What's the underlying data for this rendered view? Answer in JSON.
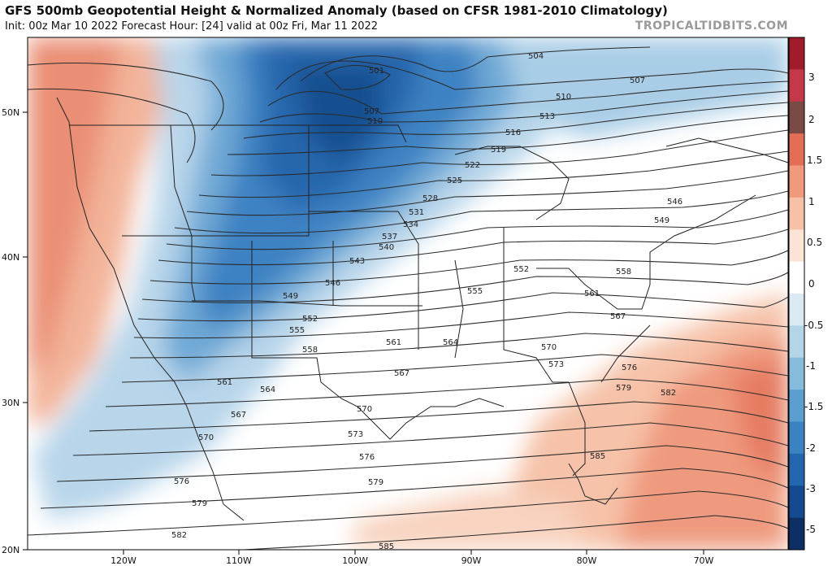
{
  "header": {
    "title": "GFS 500mb Geopotential Height & Normalized Anomaly (based on CFSR 1981-2010 Climatology)",
    "subtitle": "Init: 00z Mar 10 2022   Forecast Hour: [24]   valid at 00z Fri, Mar 11 2022",
    "credit": "TROPICALTIDBITS.COM"
  },
  "axes": {
    "lat_labels": [
      "50N",
      "40N",
      "30N",
      "20N"
    ],
    "lon_labels": [
      "120W",
      "110W",
      "100W",
      "90W",
      "80W",
      "70W"
    ]
  },
  "colorbar": {
    "labels": [
      "3",
      "2",
      "1.5",
      "1",
      "0.5",
      "0",
      "-0.5",
      "-1",
      "-1.5",
      "-2",
      "-3",
      "-5"
    ],
    "colors": [
      "#a01c2c",
      "#c4394a",
      "#7a4a44",
      "#e26e55",
      "#f0997c",
      "#f7c1a8",
      "#fbe3d6",
      "#ffffff",
      "#dbe9f3",
      "#b4d4e8",
      "#86bbdc",
      "#5a9fcf",
      "#3a82c0",
      "#2366ad",
      "#164a8e",
      "#0d2f64"
    ]
  },
  "contours": {
    "labels": [
      "501",
      "504",
      "507",
      "507",
      "510",
      "510",
      "513",
      "516",
      "519",
      "522",
      "525",
      "528",
      "531",
      "534",
      "537",
      "540",
      "543",
      "546",
      "546",
      "549",
      "549",
      "552",
      "552",
      "555",
      "555",
      "558",
      "558",
      "561",
      "561",
      "561",
      "564",
      "564",
      "567",
      "567",
      "567",
      "570",
      "570",
      "570",
      "573",
      "573",
      "576",
      "576",
      "576",
      "579",
      "579",
      "579",
      "582",
      "582",
      "585",
      "585"
    ]
  },
  "chart_data": {
    "type": "map",
    "title": "GFS 500mb Geopotential Height & Normalized Anomaly (based on CFSR 1981-2010 Climatology)",
    "field": "500mb geopotential height (dam) contours with normalized anomaly shading",
    "contour_interval_dam": 3,
    "contour_range_dam": [
      501,
      585
    ],
    "anomaly_range": [
      -5,
      3
    ],
    "lat_range": [
      20,
      55
    ],
    "lon_range": [
      -128,
      -62
    ],
    "trough_center": {
      "lon": -103,
      "lat": 51,
      "min_height_dam": 501
    },
    "colorbar_labels": [
      3,
      2,
      1.5,
      1,
      0.5,
      0,
      -0.5,
      -1,
      -1.5,
      -2,
      -3,
      -5
    ]
  }
}
